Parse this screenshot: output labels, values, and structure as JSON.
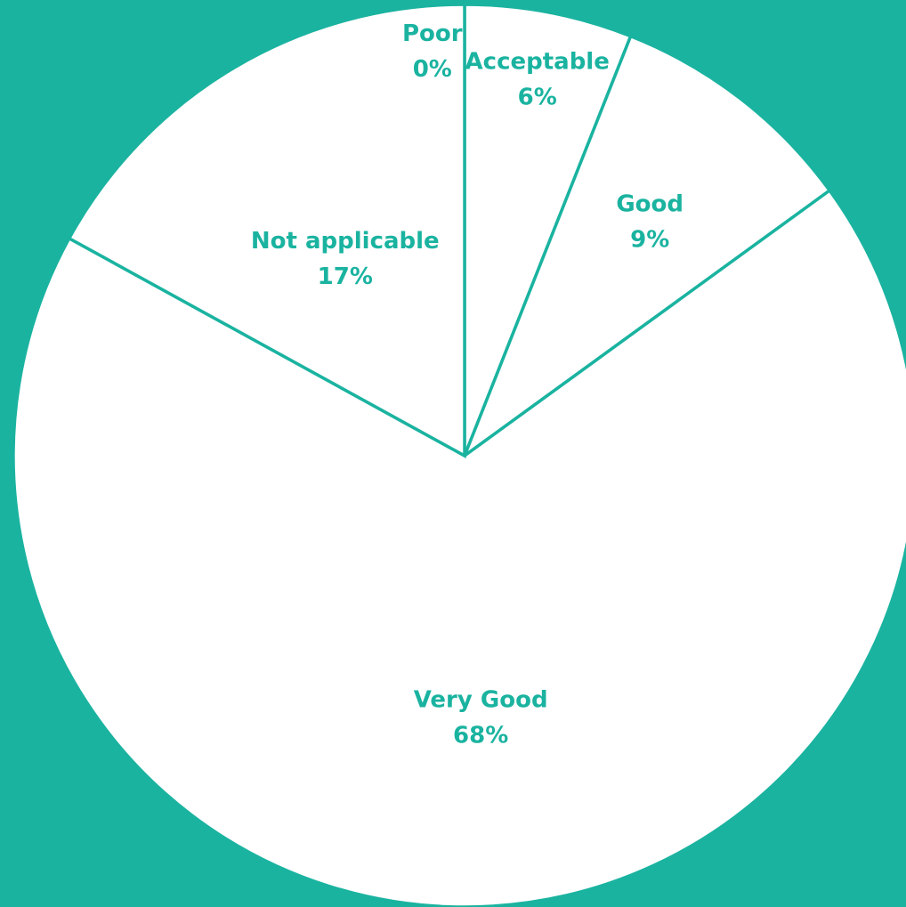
{
  "chart_data": {
    "type": "pie",
    "categories": [
      "Poor",
      "Acceptable",
      "Good",
      "Not applicable",
      "Very Good"
    ],
    "values": [
      0,
      6,
      9,
      17,
      68
    ],
    "data_labels": [
      "0%",
      "6%",
      "9%",
      "17%",
      "68%"
    ],
    "title": "",
    "legend": "none",
    "colors": {
      "background": "#1ab3a0",
      "slice_fill": "#ffffff",
      "slice_border": "#1ab3a0",
      "label_text": "#1ab3a0"
    }
  }
}
